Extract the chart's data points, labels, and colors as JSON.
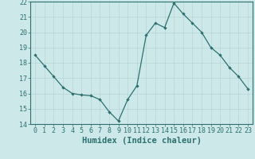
{
  "title": "",
  "xlabel": "Humidex (Indice chaleur)",
  "ylabel": "",
  "x": [
    0,
    1,
    2,
    3,
    4,
    5,
    6,
    7,
    8,
    9,
    10,
    11,
    12,
    13,
    14,
    15,
    16,
    17,
    18,
    19,
    20,
    21,
    22,
    23
  ],
  "y": [
    18.5,
    17.8,
    17.1,
    16.4,
    16.0,
    15.9,
    15.85,
    15.6,
    14.8,
    14.2,
    15.6,
    16.5,
    19.8,
    20.6,
    20.3,
    21.9,
    21.2,
    20.6,
    20.0,
    19.0,
    18.5,
    17.7,
    17.1,
    16.3
  ],
  "line_color": "#2d7070",
  "marker": "D",
  "marker_size": 2.2,
  "bg_color": "#cde8e8",
  "grid_color": "#b8d4d4",
  "axis_color": "#2d7070",
  "tick_color": "#2d7070",
  "label_color": "#2d7070",
  "ylim": [
    14,
    22
  ],
  "xlim": [
    -0.5,
    23.5
  ],
  "yticks": [
    14,
    15,
    16,
    17,
    18,
    19,
    20,
    21,
    22
  ],
  "xticks": [
    0,
    1,
    2,
    3,
    4,
    5,
    6,
    7,
    8,
    9,
    10,
    11,
    12,
    13,
    14,
    15,
    16,
    17,
    18,
    19,
    20,
    21,
    22,
    23
  ],
  "xtick_labels": [
    "0",
    "1",
    "2",
    "3",
    "4",
    "5",
    "6",
    "7",
    "8",
    "9",
    "10",
    "11",
    "12",
    "13",
    "14",
    "15",
    "16",
    "17",
    "18",
    "19",
    "20",
    "21",
    "22",
    "23"
  ],
  "xlabel_fontsize": 7.5,
  "tick_fontsize": 6.0
}
